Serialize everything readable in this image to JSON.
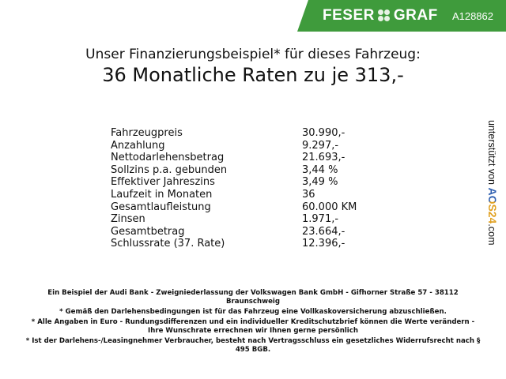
{
  "header": {
    "brand": "FESER",
    "brand2": "GRAF",
    "vehicle_id": "A128862",
    "brand_color": "#3f9b3c"
  },
  "title": {
    "line1": "Unser Finanzierungsbeispiel* für dieses Fahrzeug:",
    "line2": "36 Monatliche Raten zu je 313,-"
  },
  "rows": [
    {
      "label": "Fahrzeugpreis",
      "value": "30.990,-"
    },
    {
      "label": "Anzahlung",
      "value": "9.297,-"
    },
    {
      "label": "Nettodarlehensbetrag",
      "value": "21.693,-"
    },
    {
      "label": "Sollzins p.a. gebunden",
      "value": "3,44 %"
    },
    {
      "label": "Effektiver Jahreszins",
      "value": "3,49 %"
    },
    {
      "label": "Laufzeit in Monaten",
      "value": "36"
    },
    {
      "label": "Gesamtlaufleistung",
      "value": "60.000 KM"
    },
    {
      "label": "Zinsen",
      "value": "1.971,-"
    },
    {
      "label": "Gesamtbetrag",
      "value": "23.664,-"
    },
    {
      "label": "Schlussrate (37. Rate)",
      "value": "12.396,-"
    }
  ],
  "side": {
    "text": "unterstützt von ",
    "logo": "AOS24",
    "suffix": ".com"
  },
  "footer": [
    "Ein Beispiel der Audi Bank - Zweigniederlassung der Volkswagen Bank GmbH - Gifhorner Straße 57 - 38112 Braunschweig",
    "* Gemäß den Darlehensbedingungen ist für das Fahrzeug eine Vollkaskoversicherung abzuschließen.",
    "* Alle Angaben in Euro - Rundungsdifferenzen und ein individueller Kreditschutzbrief können die Werte verändern - Ihre Wunschrate errechnen wir Ihnen gerne persönlich",
    "* Ist der Darlehens-/Leasingnehmer Verbraucher, besteht nach Vertragsschluss ein gesetzliches Widerrufsrecht nach § 495 BGB."
  ]
}
